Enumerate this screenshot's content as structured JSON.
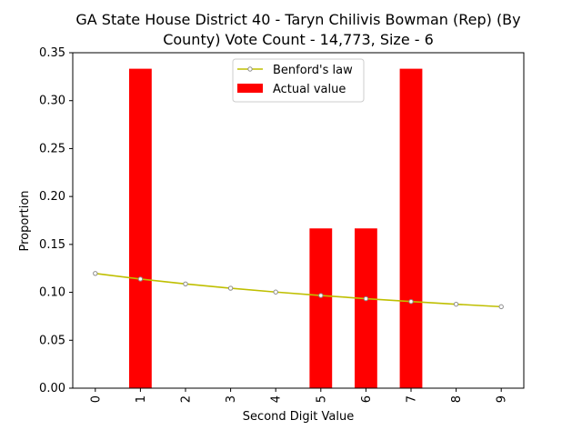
{
  "chart_data": {
    "type": "bar",
    "title_line1": "GA State House District 40 - Taryn Chilivis Bowman (Rep) (By",
    "title_line2": "County) Vote Count - 14,773, Size - 6",
    "xlabel": "Second Digit Value",
    "ylabel": "Proportion",
    "categories": [
      "0",
      "1",
      "2",
      "3",
      "4",
      "5",
      "6",
      "7",
      "8",
      "9"
    ],
    "ylim": [
      0,
      0.35
    ],
    "yticks": [
      "0.00",
      "0.05",
      "0.10",
      "0.15",
      "0.20",
      "0.25",
      "0.30",
      "0.35"
    ],
    "series": [
      {
        "name": "Actual value",
        "kind": "bar",
        "color": "#ff0000",
        "values": [
          0,
          0.3333,
          0,
          0,
          0,
          0.1667,
          0.1667,
          0.3333,
          0,
          0
        ]
      },
      {
        "name": "Benford's law",
        "kind": "line",
        "color": "#bfbf00",
        "marker_color": "#8c8c8c",
        "values": [
          0.1197,
          0.1139,
          0.1088,
          0.1043,
          0.1003,
          0.0967,
          0.0934,
          0.0904,
          0.0876,
          0.085
        ]
      }
    ],
    "legend": {
      "position": "top-center",
      "entries": [
        "Benford's law",
        "Actual value"
      ]
    },
    "grid": false
  }
}
